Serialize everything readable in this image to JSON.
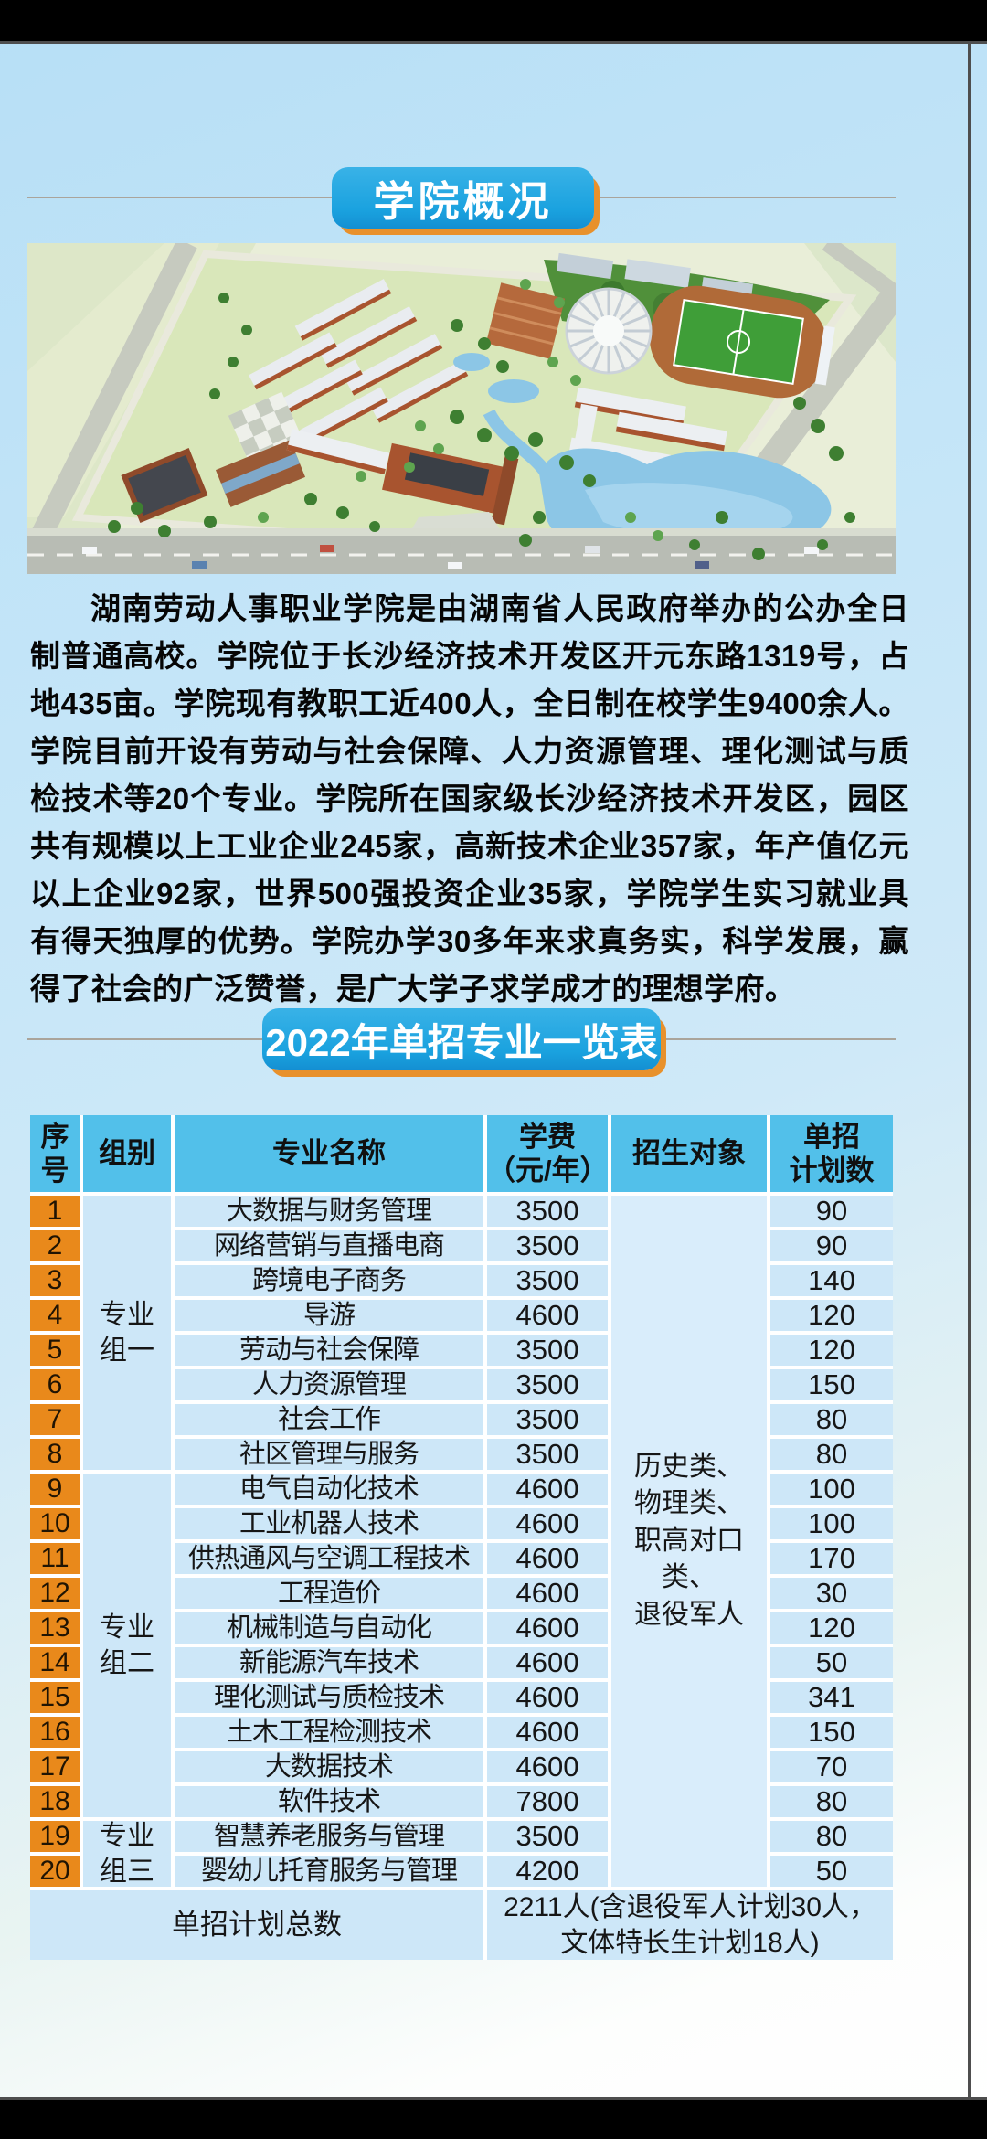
{
  "page": {
    "badge1": "学院概况",
    "badge2": "2022年单招专业一览表",
    "about": "湖南劳动人事职业学院是由湖南省人民政府举办的公办全日制普通高校。学院位于长沙经济技术开发区开元东路1319号，占地435亩。学院现有教职工近400人，全日制在校学生9400余人。学院目前开设有劳动与社会保障、人力资源管理、理化测试与质检技术等20个专业。学院所在国家级长沙经济技术开发区，园区共有规模以上工业企业245家，高新技术企业357家，年产值亿元以上企业92家，世界500强投资企业35家，学院学生实习就业具有得天独厚的优势。学院办学30多年来求真务实，科学发展，赢得了社会的广泛赞誉，是广大学子求学成才的理想学府。"
  },
  "colors": {
    "badge_blue": "#1aa2df",
    "badge_shadow_orange": "#e8912c",
    "header_blue": "#52c0ea",
    "row_blue": "#cde7f8",
    "index_orange": "#e9891b"
  },
  "table": {
    "headers": [
      "序\n号",
      "组别",
      "专业名称",
      "学费\n（元/年）",
      "招生对象",
      "单招\n计划数"
    ],
    "groups": [
      {
        "label": "专业\n组一",
        "span": 8
      },
      {
        "label": "专业\n组二",
        "span": 10
      },
      {
        "label": "专业\n组三",
        "span": 2
      }
    ],
    "rows": [
      {
        "no": "1",
        "major": "大数据与财务管理",
        "tuition": "3500",
        "plan": "90"
      },
      {
        "no": "2",
        "major": "网络营销与直播电商",
        "tuition": "3500",
        "plan": "90"
      },
      {
        "no": "3",
        "major": "跨境电子商务",
        "tuition": "3500",
        "plan": "140"
      },
      {
        "no": "4",
        "major": "导游",
        "tuition": "4600",
        "plan": "120"
      },
      {
        "no": "5",
        "major": "劳动与社会保障",
        "tuition": "3500",
        "plan": "120"
      },
      {
        "no": "6",
        "major": "人力资源管理",
        "tuition": "3500",
        "plan": "150"
      },
      {
        "no": "7",
        "major": "社会工作",
        "tuition": "3500",
        "plan": "80"
      },
      {
        "no": "8",
        "major": "社区管理与服务",
        "tuition": "3500",
        "plan": "80"
      },
      {
        "no": "9",
        "major": "电气自动化技术",
        "tuition": "4600",
        "plan": "100"
      },
      {
        "no": "10",
        "major": "工业机器人技术",
        "tuition": "4600",
        "plan": "100"
      },
      {
        "no": "11",
        "major": "供热通风与空调工程技术",
        "tuition": "4600",
        "plan": "170"
      },
      {
        "no": "12",
        "major": "工程造价",
        "tuition": "4600",
        "plan": "30"
      },
      {
        "no": "13",
        "major": "机械制造与自动化",
        "tuition": "4600",
        "plan": "120"
      },
      {
        "no": "14",
        "major": "新能源汽车技术",
        "tuition": "4600",
        "plan": "50"
      },
      {
        "no": "15",
        "major": "理化测试与质检技术",
        "tuition": "4600",
        "plan": "341"
      },
      {
        "no": "16",
        "major": "土木工程检测技术",
        "tuition": "4600",
        "plan": "150"
      },
      {
        "no": "17",
        "major": "大数据技术",
        "tuition": "4600",
        "plan": "70"
      },
      {
        "no": "18",
        "major": "软件技术",
        "tuition": "7800",
        "plan": "80"
      },
      {
        "no": "19",
        "major": "智慧养老服务与管理",
        "tuition": "3500",
        "plan": "80"
      },
      {
        "no": "20",
        "major": "婴幼儿托育服务与管理",
        "tuition": "4200",
        "plan": "50"
      }
    ],
    "target": "历史类、\n物理类、\n职高对口类、\n退役军人",
    "footer": {
      "label": "单招计划总数",
      "value": "2211人(含退役军人计划30人，\n文体特长生计划18人)"
    }
  }
}
